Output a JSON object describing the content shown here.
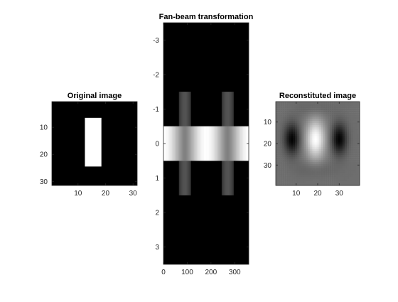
{
  "chart_data": [
    {
      "type": "heatmap",
      "title": "Original image",
      "xticks": [
        "10",
        "20",
        "30"
      ],
      "yticks": [
        "10",
        "20",
        "30"
      ],
      "xlim": [
        0.5,
        31.5
      ],
      "ylim": [
        0.5,
        31.5
      ],
      "y_reversed": true,
      "colormap": "gray",
      "content": {
        "shape": "rectangle",
        "value": 1,
        "background": 0,
        "x_range": [
          13,
          18
        ],
        "y_range": [
          7,
          24
        ]
      }
    },
    {
      "type": "heatmap",
      "title": "Fan-beam transformation",
      "xticks": [
        "0",
        "100",
        "200",
        "300"
      ],
      "yticks": [
        "-3",
        "-2",
        "-1",
        "0",
        "1",
        "2",
        "3"
      ],
      "xlim": [
        0,
        359
      ],
      "ylim": [
        -3.5,
        3.5
      ],
      "y_reversed": true,
      "colormap": "gray",
      "content": {
        "bright_band": {
          "y_range": [
            -0.5,
            0.5
          ],
          "peak_x": [
            0,
            180,
            360
          ],
          "trough_x": [
            90,
            270
          ],
          "peak_value": 1.0,
          "trough_value": 0.5
        },
        "gray_bands": {
          "y_range": [
            -1.5,
            1.5
          ],
          "centers_x": [
            90,
            270
          ],
          "half_width_x": 25,
          "value": 0.33
        }
      }
    },
    {
      "type": "heatmap",
      "title": "Reconstituted image",
      "xticks": [
        "10",
        "20",
        "30"
      ],
      "yticks": [
        "10",
        "20",
        "30"
      ],
      "xlim": [
        0.5,
        39.5
      ],
      "ylim": [
        0.5,
        39.5
      ],
      "y_reversed": true,
      "colormap": "gray",
      "content": {
        "blob_center": [
          19,
          18
        ],
        "blob_sigma": [
          3.2,
          6.5
        ],
        "dark_lobes_x": [
          8,
          30
        ],
        "lobe_sigma": [
          2.5,
          5
        ]
      }
    }
  ]
}
